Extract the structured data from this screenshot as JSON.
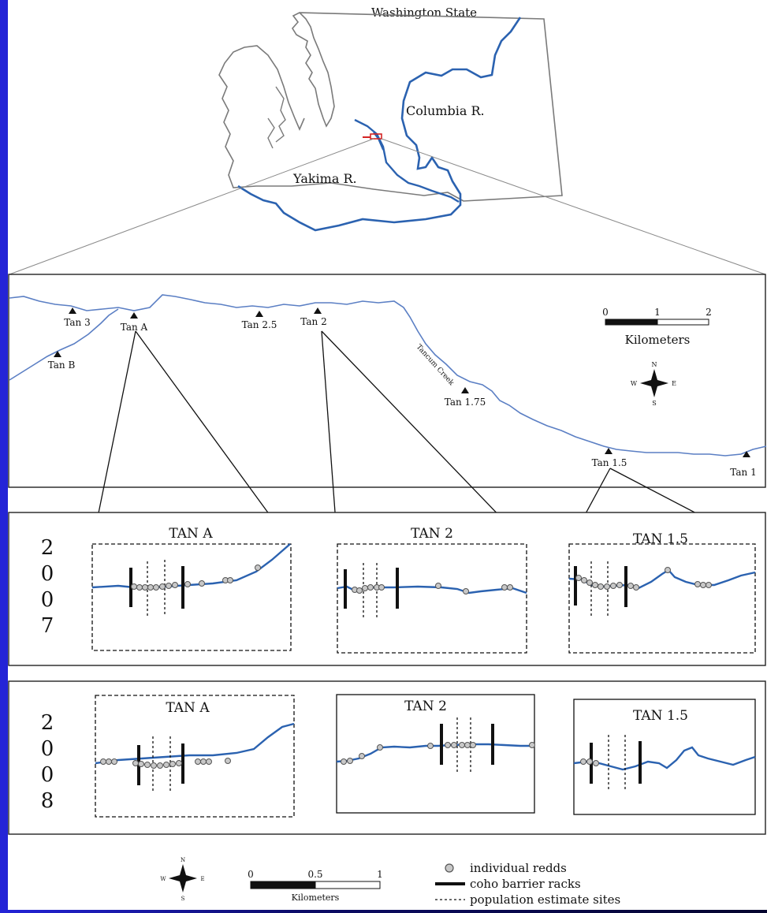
{
  "state_map": {
    "title": "Washington State",
    "rivers": [
      "Columbia R.",
      "Yakima R."
    ]
  },
  "creek_map": {
    "creek_name": "Tancum Creek",
    "sites": [
      "Tan 3",
      "Tan A",
      "Tan 2.5",
      "Tan 2",
      "Tan B",
      "Tan 1.75",
      "Tan 1.5",
      "Tan 1"
    ],
    "scale": {
      "ticks": [
        "0",
        "1",
        "2"
      ],
      "unit": "Kilometers"
    },
    "compass": {
      "n": "N",
      "s": "S",
      "e": "E",
      "w": "W"
    }
  },
  "years": [
    {
      "digits": [
        "2",
        "0",
        "0",
        "7"
      ],
      "panels": [
        "TAN A",
        "TAN 2",
        "TAN 1.5"
      ]
    },
    {
      "digits": [
        "2",
        "0",
        "0",
        "8"
      ],
      "panels": [
        "TAN A",
        "TAN 2",
        "TAN 1.5"
      ]
    }
  ],
  "legend": {
    "compass": {
      "n": "N",
      "s": "S",
      "e": "E",
      "w": "W"
    },
    "scale": {
      "ticks": [
        "0",
        "0.5",
        "1"
      ],
      "unit": "Kilometers"
    },
    "items": [
      "individual redds",
      "coho barrier racks",
      "population estimate sites"
    ]
  },
  "colors": {
    "river": "#2b62b0",
    "creek": "#5b7fc4",
    "redd": "#c8c8c8",
    "outline": "#7a7a7a"
  }
}
